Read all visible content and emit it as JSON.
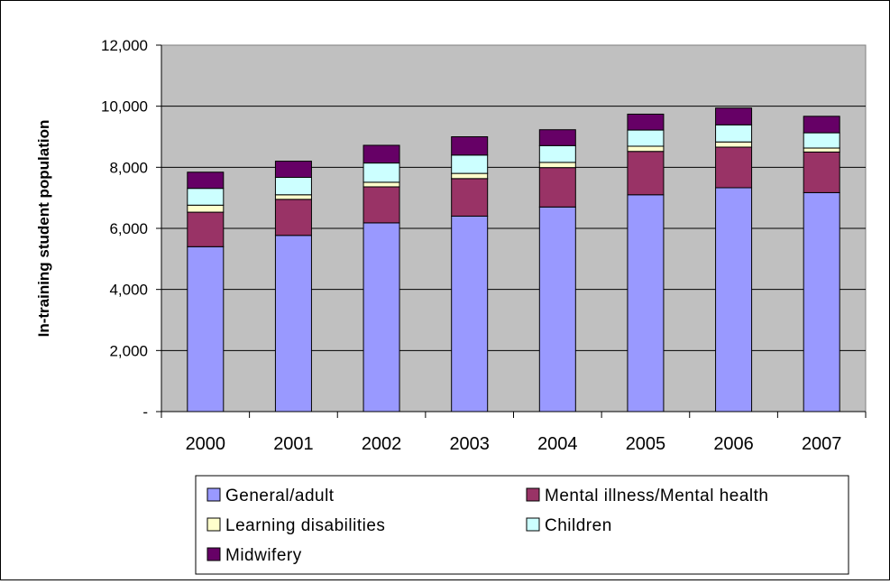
{
  "chart_data": {
    "type": "bar",
    "stacked": true,
    "title": "",
    "xlabel": "",
    "ylabel": "In-training student population",
    "ylim": [
      0,
      12000
    ],
    "yticks": [
      0,
      2000,
      4000,
      6000,
      8000,
      10000,
      12000
    ],
    "ytick_labels": [
      "-",
      "2,000",
      "4,000",
      "6,000",
      "8,000",
      "10,000",
      "12,000"
    ],
    "categories": [
      "2000",
      "2001",
      "2002",
      "2003",
      "2004",
      "2005",
      "2006",
      "2007"
    ],
    "grid": false,
    "legend_position": "bottom",
    "plot_background": "#c0c0c0",
    "series": [
      {
        "name": "General/adult",
        "color": "#9999ff",
        "values": [
          5400,
          5770,
          6180,
          6400,
          6700,
          7100,
          7330,
          7170
        ]
      },
      {
        "name": "Mental illness/Mental health",
        "color": "#993366",
        "values": [
          1130,
          1180,
          1180,
          1230,
          1290,
          1420,
          1330,
          1330
        ]
      },
      {
        "name": "Learning disabilities",
        "color": "#ffffcc",
        "values": [
          230,
          150,
          150,
          170,
          170,
          170,
          170,
          130
        ]
      },
      {
        "name": "Children",
        "color": "#ccffff",
        "values": [
          550,
          570,
          630,
          600,
          550,
          530,
          560,
          500
        ]
      },
      {
        "name": "Midwifery",
        "color": "#660066",
        "values": [
          530,
          530,
          580,
          600,
          520,
          520,
          550,
          540
        ]
      }
    ]
  }
}
